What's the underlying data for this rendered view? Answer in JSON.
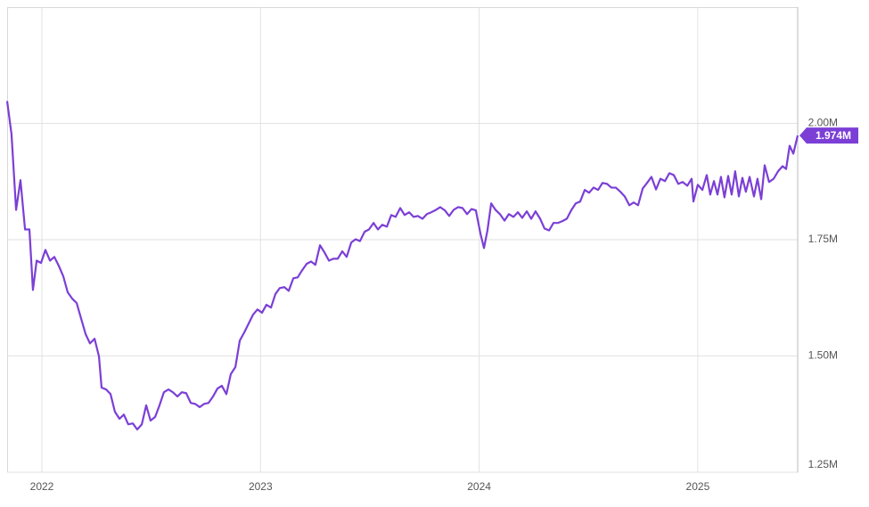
{
  "chart_data": {
    "type": "line",
    "x": [
      2021.841,
      2021.861,
      2021.882,
      2021.902,
      2021.923,
      2021.943,
      2021.959,
      2021.976,
      2021.996,
      2022.016,
      2022.037,
      2022.057,
      2022.077,
      2022.098,
      2022.118,
      2022.139,
      2022.159,
      2022.179,
      2022.2,
      2022.22,
      2022.241,
      2022.261,
      2022.273,
      2022.294,
      2022.314,
      2022.334,
      2022.355,
      2022.375,
      2022.395,
      2022.416,
      2022.436,
      2022.457,
      2022.477,
      2022.497,
      2022.518,
      2022.538,
      2022.558,
      2022.579,
      2022.599,
      2022.62,
      2022.64,
      2022.66,
      2022.681,
      2022.701,
      2022.722,
      2022.742,
      2022.762,
      2022.783,
      2022.803,
      2022.823,
      2022.844,
      2022.864,
      2022.885,
      2022.905,
      2022.925,
      2022.946,
      2022.966,
      2022.986,
      2023.007,
      2023.027,
      2023.048,
      2023.068,
      2023.088,
      2023.109,
      2023.129,
      2023.15,
      2023.17,
      2023.19,
      2023.211,
      2023.231,
      2023.251,
      2023.272,
      2023.292,
      2023.313,
      2023.333,
      2023.353,
      2023.374,
      2023.394,
      2023.415,
      2023.435,
      2023.455,
      2023.476,
      2023.496,
      2023.517,
      2023.537,
      2023.557,
      2023.578,
      2023.598,
      2023.618,
      2023.639,
      2023.659,
      2023.68,
      2023.7,
      2023.72,
      2023.741,
      2023.761,
      2023.781,
      2023.802,
      2023.822,
      2023.843,
      2023.863,
      2023.883,
      2023.904,
      2023.924,
      2023.945,
      2023.965,
      2023.985,
      2024.006,
      2024.022,
      2024.038,
      2024.055,
      2024.075,
      2024.095,
      2024.116,
      2024.136,
      2024.157,
      2024.177,
      2024.197,
      2024.218,
      2024.238,
      2024.258,
      2024.279,
      2024.299,
      2024.32,
      2024.34,
      2024.36,
      2024.381,
      2024.401,
      2024.422,
      2024.442,
      2024.462,
      2024.483,
      2024.503,
      2024.523,
      2024.544,
      2024.564,
      2024.585,
      2024.605,
      2024.625,
      2024.646,
      2024.666,
      2024.687,
      2024.707,
      2024.727,
      2024.748,
      2024.768,
      2024.788,
      2024.809,
      2024.829,
      2024.85,
      2024.87,
      2024.89,
      2024.911,
      2024.931,
      2024.952,
      2024.972,
      2024.98,
      2025.0,
      2025.021,
      2025.041,
      2025.057,
      2025.074,
      2025.09,
      2025.106,
      2025.122,
      2025.139,
      2025.155,
      2025.171,
      2025.188,
      2025.204,
      2025.22,
      2025.237,
      2025.257,
      2025.273,
      2025.29,
      2025.306,
      2025.326,
      2025.347,
      2025.367,
      2025.388,
      2025.404,
      2025.42,
      2025.437,
      2025.457
    ],
    "series": [
      {
        "color": "#7b3fd6",
        "values": [
          2.048,
          1.977,
          1.814,
          1.878,
          1.772,
          1.772,
          1.642,
          1.705,
          1.7,
          1.728,
          1.705,
          1.713,
          1.694,
          1.671,
          1.637,
          1.623,
          1.614,
          1.581,
          1.547,
          1.527,
          1.537,
          1.499,
          1.432,
          1.428,
          1.418,
          1.38,
          1.365,
          1.374,
          1.353,
          1.355,
          1.342,
          1.353,
          1.394,
          1.361,
          1.369,
          1.394,
          1.422,
          1.428,
          1.422,
          1.413,
          1.422,
          1.42,
          1.399,
          1.397,
          1.39,
          1.397,
          1.399,
          1.413,
          1.43,
          1.436,
          1.418,
          1.461,
          1.476,
          1.533,
          1.55,
          1.57,
          1.589,
          1.6,
          1.593,
          1.61,
          1.604,
          1.633,
          1.646,
          1.648,
          1.64,
          1.667,
          1.669,
          1.684,
          1.698,
          1.703,
          1.696,
          1.738,
          1.723,
          1.705,
          1.709,
          1.709,
          1.725,
          1.713,
          1.744,
          1.751,
          1.747,
          1.767,
          1.772,
          1.786,
          1.772,
          1.782,
          1.778,
          1.803,
          1.799,
          1.818,
          1.803,
          1.809,
          1.799,
          1.801,
          1.795,
          1.805,
          1.809,
          1.814,
          1.82,
          1.813,
          1.801,
          1.814,
          1.82,
          1.818,
          1.805,
          1.816,
          1.813,
          1.763,
          1.732,
          1.77,
          1.828,
          1.814,
          1.805,
          1.791,
          1.805,
          1.799,
          1.809,
          1.797,
          1.811,
          1.795,
          1.811,
          1.795,
          1.774,
          1.77,
          1.786,
          1.786,
          1.79,
          1.795,
          1.814,
          1.828,
          1.832,
          1.857,
          1.851,
          1.862,
          1.857,
          1.872,
          1.87,
          1.862,
          1.862,
          1.853,
          1.843,
          1.824,
          1.83,
          1.824,
          1.86,
          1.872,
          1.885,
          1.858,
          1.881,
          1.876,
          1.893,
          1.889,
          1.87,
          1.874,
          1.866,
          1.881,
          1.832,
          1.868,
          1.857,
          1.889,
          1.847,
          1.876,
          1.847,
          1.885,
          1.841,
          1.887,
          1.847,
          1.897,
          1.843,
          1.883,
          1.853,
          1.885,
          1.843,
          1.881,
          1.837,
          1.91,
          1.874,
          1.881,
          1.897,
          1.908,
          1.902,
          1.952,
          1.935,
          1.974
        ],
        "value_labels": [
          null,
          null,
          null,
          null,
          null,
          null,
          null,
          null,
          null,
          null,
          null,
          null,
          null,
          null,
          null,
          null,
          null,
          null,
          null,
          null,
          null,
          null,
          null,
          null,
          null,
          null,
          null,
          null,
          null,
          null,
          null,
          null,
          null,
          null,
          null,
          null,
          null,
          null,
          null,
          null,
          null,
          null,
          null,
          null,
          null,
          null,
          null,
          null,
          null,
          null,
          null,
          null,
          null,
          null,
          null,
          null,
          null,
          null,
          null,
          null,
          null,
          null,
          null,
          null,
          null,
          null,
          null,
          null,
          null,
          null,
          null,
          null,
          null,
          null,
          null,
          null,
          null,
          null,
          null,
          null,
          null,
          null,
          null,
          null,
          null,
          null,
          null,
          null,
          null,
          null,
          null,
          null,
          null,
          null,
          null,
          null,
          null,
          null,
          null,
          null,
          null,
          null,
          null,
          null,
          null,
          null,
          null,
          null,
          null,
          null,
          null,
          null,
          null,
          null,
          null,
          null,
          null,
          null,
          null,
          null,
          null,
          null,
          null,
          null,
          null,
          null,
          null,
          null,
          null,
          null,
          null,
          null,
          null,
          null,
          null,
          null,
          null,
          null,
          null,
          null,
          null,
          null,
          null,
          null,
          null,
          null,
          null,
          null,
          null,
          null,
          null,
          null,
          null,
          null,
          null,
          null,
          null,
          null,
          null,
          null,
          null,
          null,
          null,
          null,
          null,
          null,
          null,
          null,
          null,
          null,
          null,
          null,
          null,
          null,
          null,
          null,
          null,
          null,
          null,
          null,
          null,
          null,
          null,
          "1.974M"
        ]
      }
    ],
    "xlim": [
      2021.841,
      2025.457
    ],
    "xticks": [
      2022,
      2023,
      2024,
      2025
    ],
    "ylim": [
      1.25,
      2.25
    ],
    "yticks": [
      {
        "value": 1.25,
        "label": "1.25M"
      },
      {
        "value": 1.5,
        "label": "1.50M"
      },
      {
        "value": 1.75,
        "label": "1.75M"
      },
      {
        "value": 2.0,
        "label": "2.00M"
      }
    ],
    "grid": true
  }
}
